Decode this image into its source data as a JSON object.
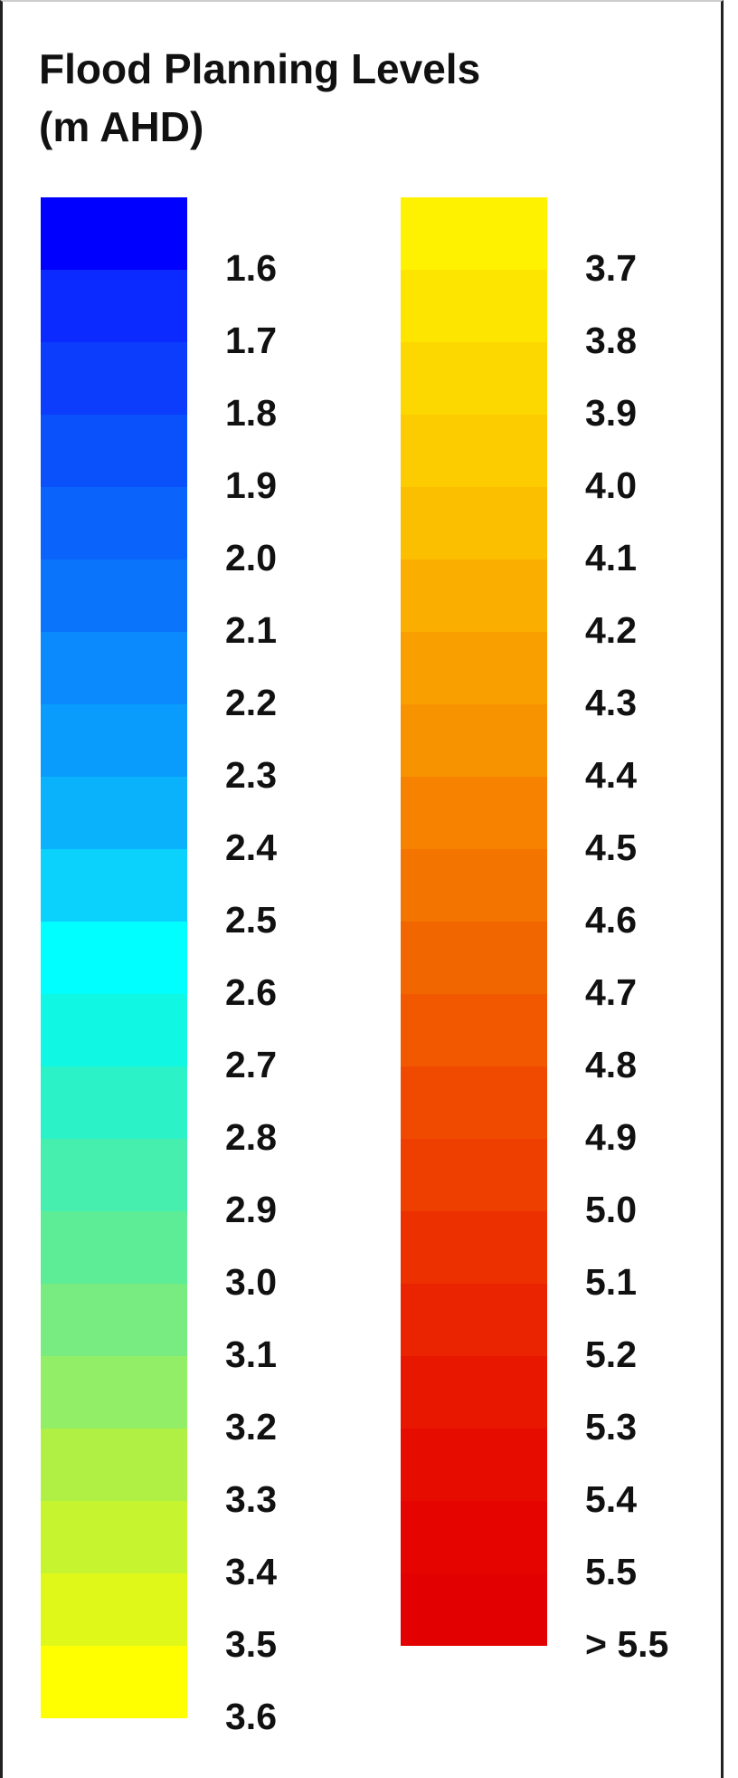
{
  "legend": {
    "title_line1": "Flood Planning Levels",
    "title_line2": "(m AHD)",
    "columns": [
      {
        "swatches": [
          "#0000ff",
          "#0a2aff",
          "#0c3cfc",
          "#0a50fb",
          "#0a64fb",
          "#0a74fb",
          "#0a8afc",
          "#0a9cfc",
          "#0ab2fc",
          "#0ad2fc",
          "#00ffff",
          "#10f8e4",
          "#2cf2c8",
          "#46efae",
          "#5ced96",
          "#78ec80",
          "#92ee66",
          "#b0f044",
          "#c6f42e",
          "#dff81a",
          "#ffff00"
        ],
        "labels": [
          "1.6",
          "1.7",
          "1.8",
          "1.9",
          "2.0",
          "2.1",
          "2.2",
          "2.3",
          "2.4",
          "2.5",
          "2.6",
          "2.7",
          "2.8",
          "2.9",
          "3.0",
          "3.1",
          "3.2",
          "3.3",
          "3.4",
          "3.5",
          "3.6"
        ]
      },
      {
        "swatches": [
          "#fff200",
          "#fee500",
          "#fdd700",
          "#fccb00",
          "#fbbf00",
          "#faae00",
          "#f9a000",
          "#f89300",
          "#f78200",
          "#f47400",
          "#f26600",
          "#f15800",
          "#f04a00",
          "#ee3e00",
          "#ec3000",
          "#ea2400",
          "#e81800",
          "#e60c00",
          "#e50400",
          "#e20000"
        ],
        "labels": [
          "3.7",
          "3.8",
          "3.9",
          "4.0",
          "4.1",
          "4.2",
          "4.3",
          "4.4",
          "4.5",
          "4.6",
          "4.7",
          "4.8",
          "4.9",
          "5.0",
          "5.1",
          "5.2",
          "5.3",
          "5.4",
          "5.5",
          "> 5.5"
        ]
      }
    ]
  }
}
